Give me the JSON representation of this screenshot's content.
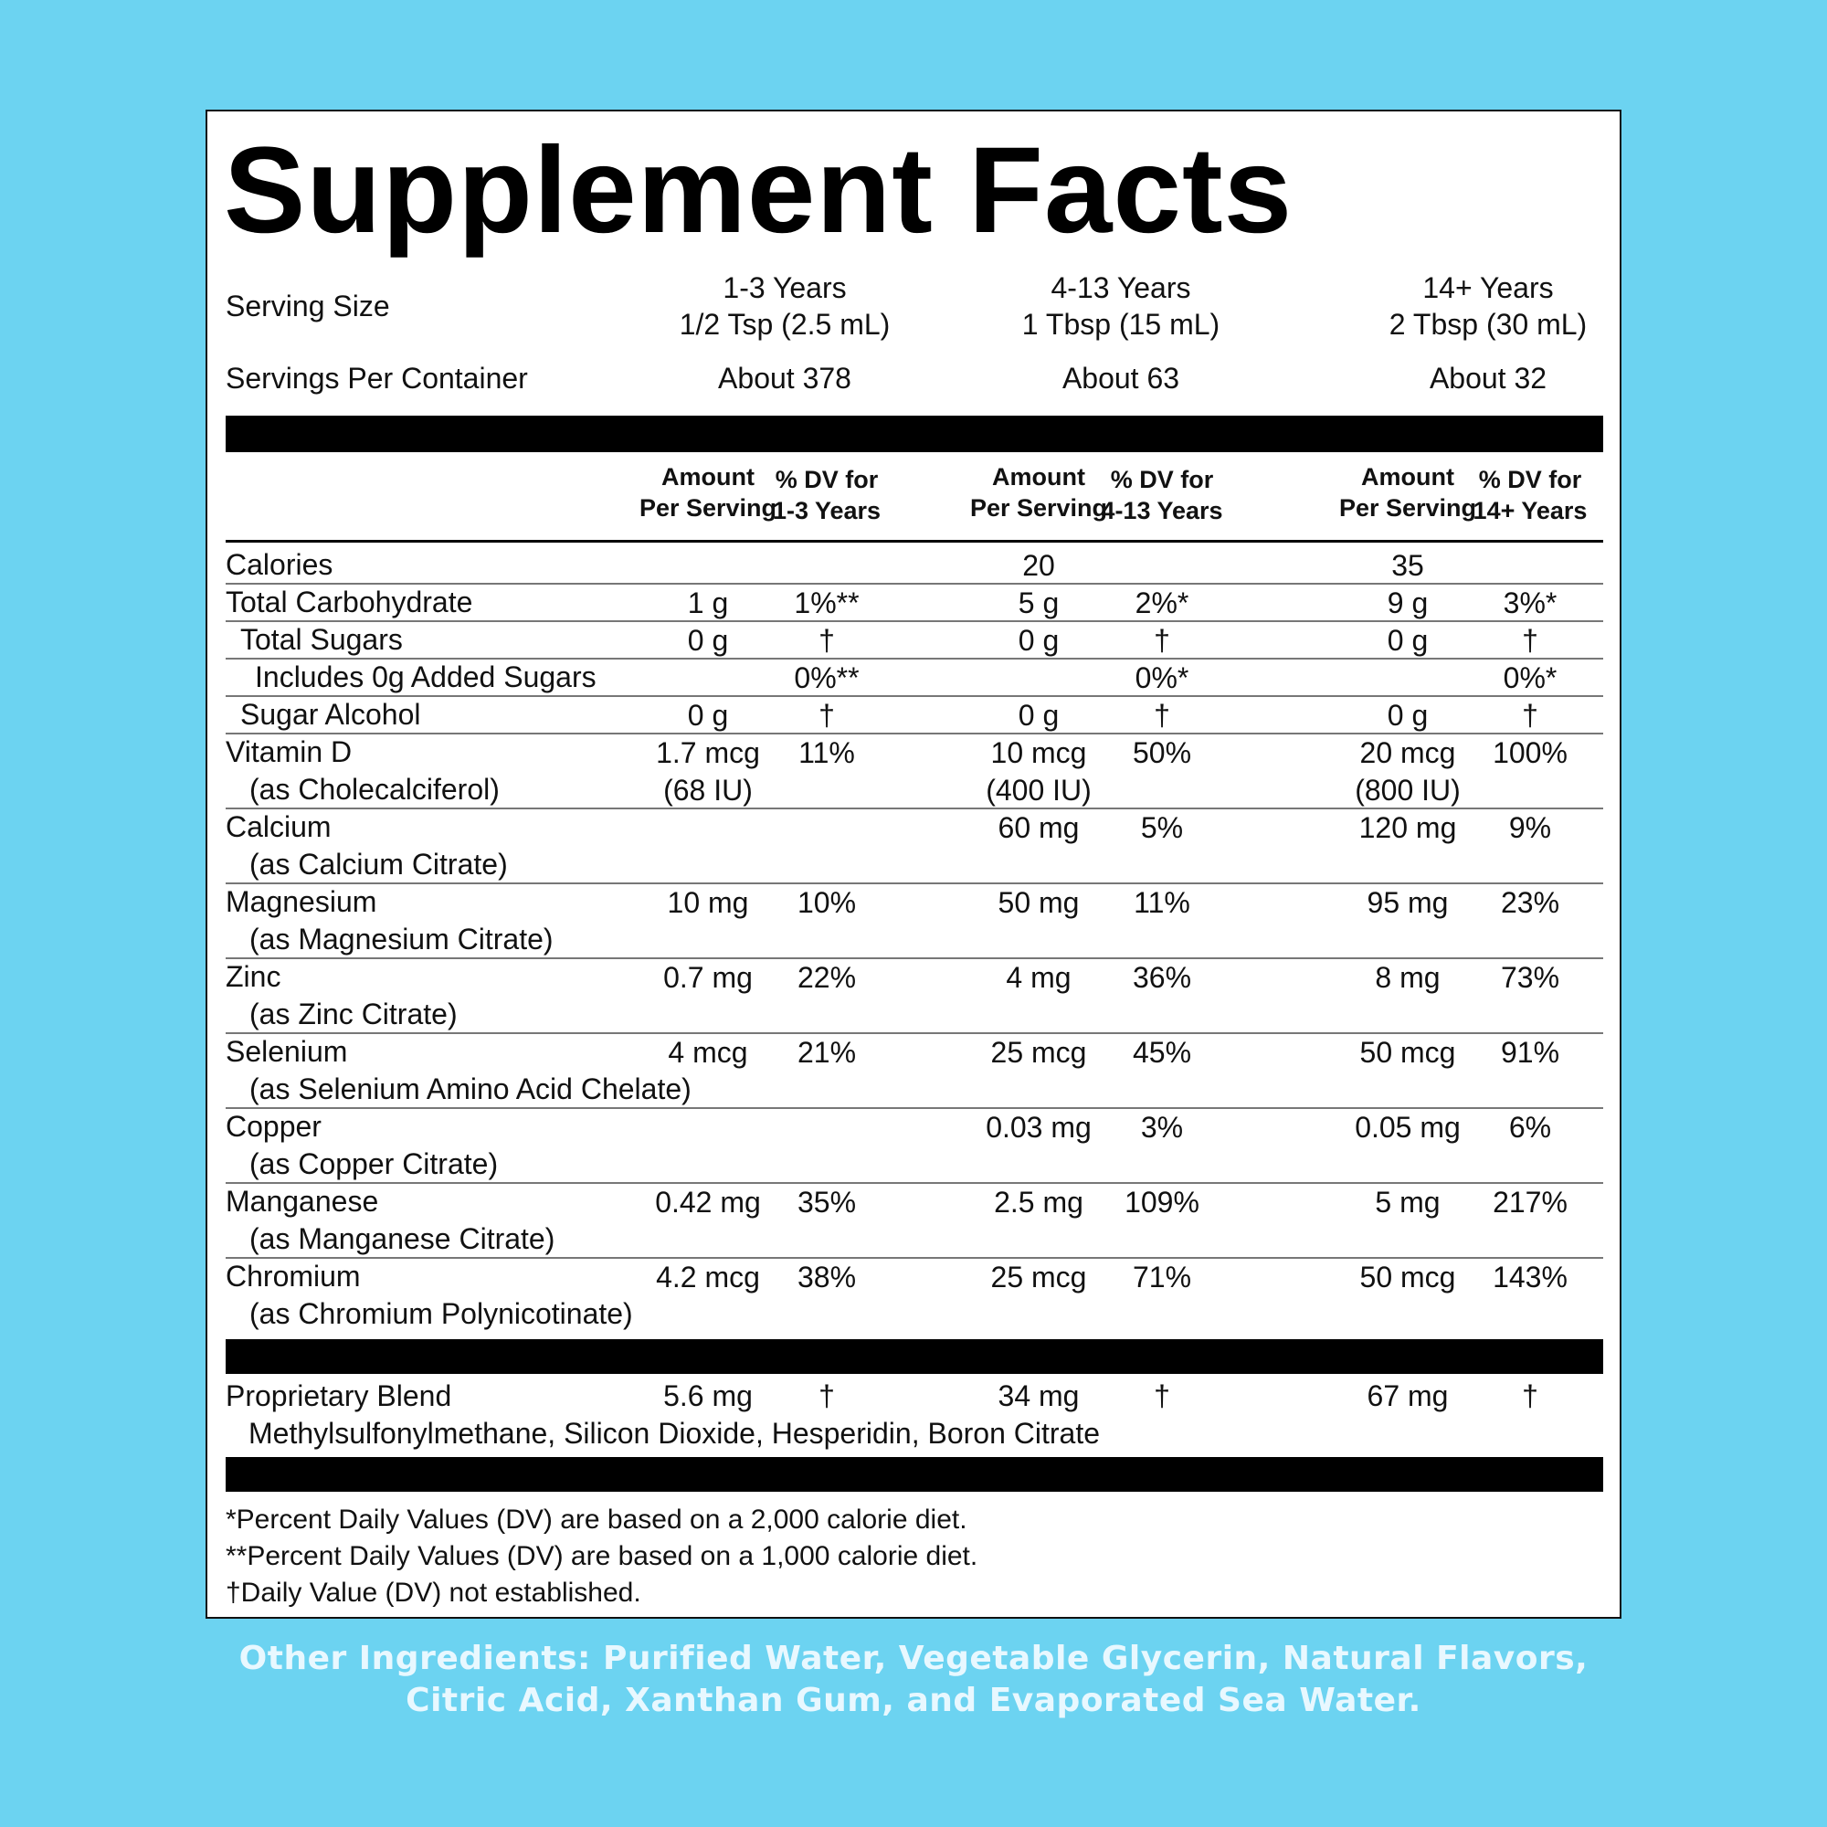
{
  "title": "Supplement Facts",
  "serving_size_label": "Serving Size",
  "servings_per_container_label": "Servings Per Container",
  "age_groups": [
    {
      "age": "1-3 Years",
      "serving": "1/2 Tsp (2.5 mL)",
      "servings_per_container": "About 378"
    },
    {
      "age": "4-13 Years",
      "serving": "1 Tbsp (15 mL)",
      "servings_per_container": "About 63"
    },
    {
      "age": "14+ Years",
      "serving": "2 Tbsp (30 mL)",
      "servings_per_container": "About 32"
    }
  ],
  "column_headers": [
    {
      "amount_line1": "Amount",
      "amount_line2": "Per Serving",
      "dv_line1": "% DV for",
      "dv_line2": "1-3 Years"
    },
    {
      "amount_line1": "Amount",
      "amount_line2": "Per Serving",
      "dv_line1": "% DV for",
      "dv_line2": "4-13 Years"
    },
    {
      "amount_line1": "Amount",
      "amount_line2": "Per Serving",
      "dv_line1": "% DV for",
      "dv_line2": "14+ Years"
    }
  ],
  "nutrients": [
    {
      "name": "Calories",
      "sub": "",
      "indent": 0,
      "values": [
        [
          "",
          ""
        ],
        [
          "20",
          ""
        ],
        [
          "35",
          ""
        ]
      ]
    },
    {
      "name": "Total Carbohydrate",
      "sub": "",
      "indent": 0,
      "values": [
        [
          "1 g",
          "1%**"
        ],
        [
          "5 g",
          "2%*"
        ],
        [
          "9 g",
          "3%*"
        ]
      ]
    },
    {
      "name": "Total Sugars",
      "sub": "",
      "indent": 1,
      "values": [
        [
          "0 g",
          "†"
        ],
        [
          "0 g",
          "†"
        ],
        [
          "0 g",
          "†"
        ]
      ]
    },
    {
      "name": "Includes 0g Added Sugars",
      "sub": "",
      "indent": 2,
      "values": [
        [
          "",
          "0%**"
        ],
        [
          "",
          "0%*"
        ],
        [
          "",
          "0%*"
        ]
      ]
    },
    {
      "name": "Sugar Alcohol",
      "sub": "",
      "indent": 1,
      "values": [
        [
          "0 g",
          "†"
        ],
        [
          "0 g",
          "†"
        ],
        [
          "0 g",
          "†"
        ]
      ]
    },
    {
      "name": "Vitamin D",
      "sub": "(as Cholecalciferol)",
      "indent": 0,
      "values": [
        [
          "1.7 mcg",
          "11%",
          "(68 IU)"
        ],
        [
          "10 mcg",
          "50%",
          "(400 IU)"
        ],
        [
          "20 mcg",
          "100%",
          "(800 IU)"
        ]
      ]
    },
    {
      "name": "Calcium",
      "sub": "(as Calcium Citrate)",
      "indent": 0,
      "values": [
        [
          "",
          ""
        ],
        [
          "60 mg",
          "5%"
        ],
        [
          "120 mg",
          "9%"
        ]
      ]
    },
    {
      "name": "Magnesium",
      "sub": "(as Magnesium Citrate)",
      "indent": 0,
      "values": [
        [
          "10 mg",
          "10%"
        ],
        [
          "50 mg",
          "11%"
        ],
        [
          "95 mg",
          "23%"
        ]
      ]
    },
    {
      "name": "Zinc",
      "sub": "(as Zinc Citrate)",
      "indent": 0,
      "values": [
        [
          "0.7 mg",
          "22%"
        ],
        [
          "4 mg",
          "36%"
        ],
        [
          "8 mg",
          "73%"
        ]
      ]
    },
    {
      "name": "Selenium",
      "sub": "(as Selenium Amino Acid Chelate)",
      "indent": 0,
      "values": [
        [
          "4 mcg",
          "21%"
        ],
        [
          "25 mcg",
          "45%"
        ],
        [
          "50 mcg",
          "91%"
        ]
      ]
    },
    {
      "name": "Copper",
      "sub": "(as Copper Citrate)",
      "indent": 0,
      "values": [
        [
          "",
          ""
        ],
        [
          "0.03 mg",
          "3%"
        ],
        [
          "0.05 mg",
          "6%"
        ]
      ]
    },
    {
      "name": "Manganese",
      "sub": "(as Manganese Citrate)",
      "indent": 0,
      "values": [
        [
          "0.42 mg",
          "35%"
        ],
        [
          "2.5 mg",
          "109%"
        ],
        [
          "5 mg",
          "217%"
        ]
      ]
    },
    {
      "name": "Chromium",
      "sub": "(as Chromium Polynicotinate)",
      "indent": 0,
      "values": [
        [
          "4.2 mcg",
          "38%"
        ],
        [
          "25 mcg",
          "71%"
        ],
        [
          "50 mcg",
          "143%"
        ]
      ]
    }
  ],
  "proprietary_blend": {
    "name": "Proprietary Blend",
    "ingredients": "Methylsulfonylmethane, Silicon Dioxide, Hesperidin, Boron Citrate",
    "values": [
      [
        "5.6 mg",
        "†"
      ],
      [
        "34 mg",
        "†"
      ],
      [
        "67 mg",
        "†"
      ]
    ]
  },
  "footnotes": [
    "*Percent Daily Values (DV) are based on a 2,000 calorie diet.",
    "**Percent Daily Values (DV) are based on a 1,000 calorie diet.",
    "†Daily Value (DV) not established."
  ],
  "other_ingredients": [
    "Other Ingredients: Purified Water, Vegetable Glycerin, Natural Flavors,",
    "Citric Acid, Xanthan Gum, and Evaporated Sea Water."
  ],
  "colors": {
    "background": "#6cd3f1",
    "panel": "#ffffff",
    "text": "#111111",
    "other_ingredients_text": "#e8f8ff"
  }
}
